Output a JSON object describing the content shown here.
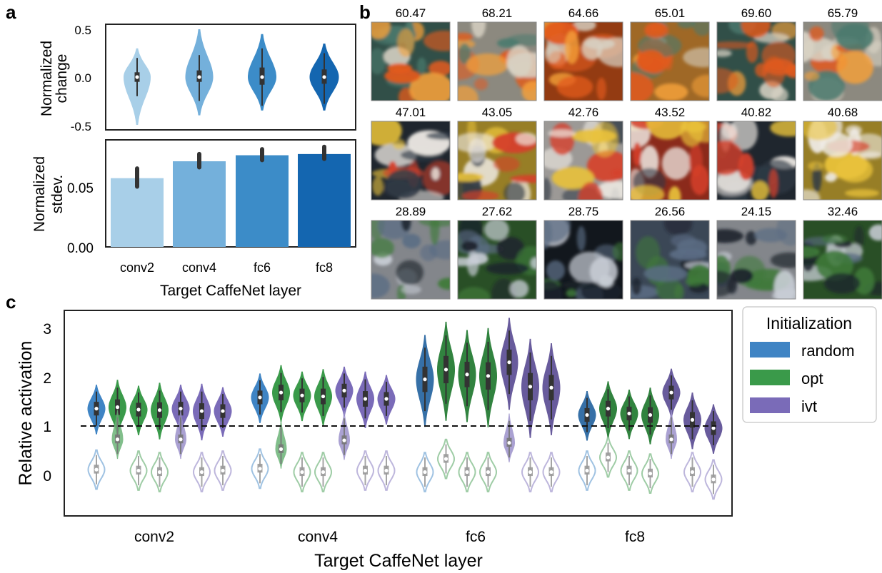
{
  "panel_labels": {
    "a": "a",
    "b": "b",
    "c": "c"
  },
  "chart_data": [
    {
      "id": "a-top",
      "type": "violin",
      "ylabel_lines": [
        "Normalized",
        "change"
      ],
      "yticks": [
        "0.5",
        "0.0",
        "-0.5"
      ],
      "ylim": [
        -0.5,
        0.5
      ],
      "categories": [
        "conv2",
        "conv4",
        "fc6",
        "fc8"
      ],
      "colors": [
        "#a8cfe8",
        "#74b0db",
        "#3c8cc8",
        "#1466b0"
      ],
      "distributions": [
        {
          "median": 0.0,
          "q1": -0.05,
          "q3": 0.05,
          "wlo": -0.2,
          "whi": 0.2,
          "min": -0.5,
          "max": 0.3
        },
        {
          "median": 0.0,
          "q1": -0.05,
          "q3": 0.07,
          "wlo": -0.25,
          "whi": 0.23,
          "min": -0.4,
          "max": 0.5
        },
        {
          "median": 0.0,
          "q1": -0.08,
          "q3": 0.1,
          "wlo": -0.3,
          "whi": 0.3,
          "min": -0.35,
          "max": 0.45
        },
        {
          "median": 0.0,
          "q1": -0.07,
          "q3": 0.08,
          "wlo": -0.28,
          "whi": 0.25,
          "min": -0.35,
          "max": 0.35
        }
      ]
    },
    {
      "id": "a-bottom",
      "type": "bar",
      "ylabel_lines": [
        "Normalized",
        "stdev."
      ],
      "yticks": [
        "0.05",
        "0.00"
      ],
      "ylim": [
        0,
        0.085
      ],
      "categories": [
        "conv2",
        "conv4",
        "fc6",
        "fc8"
      ],
      "values": [
        0.057,
        0.071,
        0.076,
        0.077
      ],
      "err_lo": [
        0.05,
        0.066,
        0.072,
        0.073
      ],
      "err_hi": [
        0.065,
        0.077,
        0.081,
        0.083
      ],
      "colors": [
        "#a8cfe8",
        "#74b0db",
        "#3c8cc8",
        "#1466b0"
      ],
      "xlabel": "Target CaffeNet layer"
    },
    {
      "id": "c",
      "type": "violin",
      "ylabel": "Relative activation",
      "xlabel": "Target CaffeNet layer",
      "yticks": [
        "3",
        "2",
        "1",
        "0"
      ],
      "ylim": [
        -0.85,
        3.35
      ],
      "reference_line": 1,
      "categories": [
        "conv2",
        "conv4",
        "fc6",
        "fc8"
      ],
      "legend": {
        "title": "Initialization",
        "entries": [
          {
            "name": "random",
            "color": "#3f84c4"
          },
          {
            "name": "opt",
            "color": "#3a9a4a"
          },
          {
            "name": "ivt",
            "color": "#7a6bb8"
          }
        ]
      },
      "series": [
        {
          "group": "conv2",
          "init": "random",
          "target": 1.35,
          "other": 0.1
        },
        {
          "group": "conv2",
          "init": "opt",
          "target": 1.38,
          "other": 0.72
        },
        {
          "group": "conv2",
          "init": "opt",
          "target": 1.33,
          "other": 0.08
        },
        {
          "group": "conv2",
          "init": "opt",
          "target": 1.32,
          "other": 0.05
        },
        {
          "group": "conv2",
          "init": "ivt",
          "target": 1.35,
          "other": 0.72
        },
        {
          "group": "conv2",
          "init": "ivt",
          "target": 1.3,
          "other": 0.05
        },
        {
          "group": "conv2",
          "init": "ivt",
          "target": 1.3,
          "other": 0.08
        },
        {
          "group": "conv4",
          "init": "random",
          "target": 1.58,
          "other": 0.12
        },
        {
          "group": "conv4",
          "init": "opt",
          "target": 1.68,
          "other": 0.52
        },
        {
          "group": "conv4",
          "init": "opt",
          "target": 1.62,
          "other": 0.05
        },
        {
          "group": "conv4",
          "init": "opt",
          "target": 1.6,
          "other": 0.05
        },
        {
          "group": "conv4",
          "init": "ivt",
          "target": 1.72,
          "other": 0.7
        },
        {
          "group": "conv4",
          "init": "ivt",
          "target": 1.55,
          "other": 0.08
        },
        {
          "group": "conv4",
          "init": "ivt",
          "target": 1.55,
          "other": 0.08
        },
        {
          "group": "fc6",
          "init": "random",
          "target": 1.95,
          "other": 0.05
        },
        {
          "group": "fc6",
          "init": "opt",
          "target": 2.15,
          "other": 0.32
        },
        {
          "group": "fc6",
          "init": "opt",
          "target": 2.05,
          "other": 0.05
        },
        {
          "group": "fc6",
          "init": "opt",
          "target": 2.02,
          "other": 0.05
        },
        {
          "group": "fc6",
          "init": "ivt",
          "target": 2.3,
          "other": 0.65
        },
        {
          "group": "fc6",
          "init": "ivt",
          "target": 1.8,
          "other": 0.05
        },
        {
          "group": "fc6",
          "init": "ivt",
          "target": 1.78,
          "other": 0.05
        },
        {
          "group": "fc8",
          "init": "random",
          "target": 1.22,
          "other": 0.08
        },
        {
          "group": "fc8",
          "init": "opt",
          "target": 1.35,
          "other": 0.35
        },
        {
          "group": "fc8",
          "init": "opt",
          "target": 1.25,
          "other": 0.08
        },
        {
          "group": "fc8",
          "init": "opt",
          "target": 1.22,
          "other": 0.02
        },
        {
          "group": "fc8",
          "init": "ivt",
          "target": 1.68,
          "other": 0.72
        },
        {
          "group": "fc8",
          "init": "ivt",
          "target": 1.12,
          "other": 0.05
        },
        {
          "group": "fc8",
          "init": "ivt",
          "target": 0.95,
          "other": -0.1
        }
      ]
    }
  ],
  "image_grid": {
    "rows": [
      {
        "scores": [
          "60.47",
          "68.21",
          "64.66",
          "65.01",
          "69.60",
          "65.79"
        ],
        "palette": [
          "#e25a1c",
          "#f4a03a",
          "#4b7a6e",
          "#d8d2c4"
        ]
      },
      {
        "scores": [
          "47.01",
          "43.05",
          "42.76",
          "43.52",
          "40.82",
          "40.68"
        ],
        "palette": [
          "#f0ece6",
          "#d6402a",
          "#2f3a46",
          "#e9c23a"
        ]
      },
      {
        "scores": [
          "28.89",
          "27.62",
          "28.75",
          "26.56",
          "24.15",
          "32.46"
        ],
        "palette": [
          "#1c232c",
          "#5b6d84",
          "#c9ced6",
          "#3f7a3a"
        ]
      }
    ]
  }
}
